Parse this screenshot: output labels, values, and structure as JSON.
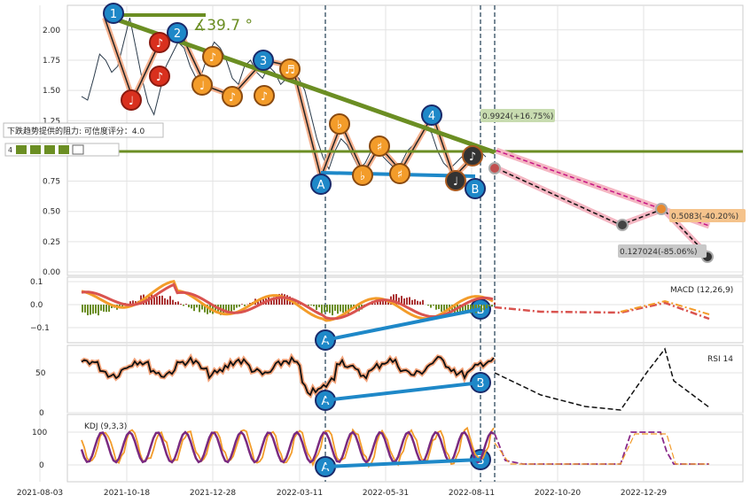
{
  "chart_data": [
    {
      "type": "line",
      "panel": "price",
      "ylim": [
        0.0,
        2.2
      ],
      "yticks": [
        "2.00",
        "1.75",
        "1.50",
        "1.25",
        "1.00",
        "0.75",
        "0.50",
        "0.25",
        "0.00"
      ],
      "angle_label": "∡39.7 °",
      "resistance_label": "下跌趋势提供的阻力: 可信度评分：4.0",
      "rating_label": "4",
      "series": [
        {
          "values": [
            1.45,
            1.42,
            1.6,
            1.8,
            1.75,
            1.65,
            1.7,
            1.9,
            2.1,
            1.85,
            1.6,
            1.4,
            1.3,
            1.5,
            1.7,
            1.8,
            1.9,
            1.85,
            1.7,
            1.6,
            1.65,
            1.8,
            1.9,
            1.85,
            1.75,
            1.6,
            1.55,
            1.7,
            1.75,
            1.65,
            1.6,
            1.7,
            1.65,
            1.55,
            1.6,
            1.65,
            1.6,
            1.5,
            1.3,
            1.1,
            0.95,
            0.85,
            1.0,
            1.1,
            1.05,
            0.95,
            0.85,
            0.9,
            1.0,
            1.05,
            0.95,
            0.9,
            0.85,
            0.9,
            1.0,
            1.05,
            1.1,
            1.2,
            1.15,
            1.0,
            0.9,
            0.85,
            0.9,
            0.95,
            0.9,
            0.95,
            1.0,
            0.95
          ]
        }
      ],
      "projections": [
        {
          "label": "0.9924(+16.75%)"
        },
        {
          "label": "0.5083(-40.20%)"
        },
        {
          "label": "0.127024(-85.06%)"
        }
      ],
      "markers": {
        "blue": [
          "1",
          "2",
          "3",
          "4",
          "A",
          "B"
        ],
        "red": [
          "♪",
          "♩",
          "♪"
        ],
        "orange": [
          "♩",
          "♪",
          "♪",
          "♪",
          "♬",
          "♭",
          "♭",
          "♯",
          "♯"
        ],
        "dark": [
          "♪",
          "♩"
        ]
      }
    },
    {
      "type": "line",
      "panel": "macd",
      "title": "MACD (12,26,9)",
      "ylim": [
        -0.15,
        0.12
      ],
      "yticks": [
        "0.1",
        "0.0",
        "−0.1"
      ],
      "divergence_points": [
        "A",
        "B"
      ]
    },
    {
      "type": "line",
      "panel": "rsi",
      "title": "RSI 14",
      "ylim": [
        0,
        90
      ],
      "yticks": [
        "50",
        "0"
      ],
      "divergence_points": [
        "A",
        "B"
      ]
    },
    {
      "type": "line",
      "panel": "kdj",
      "title": "KDJ (9,3,3)",
      "ylim": [
        -20,
        120
      ],
      "yticks": [
        "100",
        "0"
      ],
      "divergence_points": [
        "A",
        "B"
      ]
    }
  ],
  "xticks": [
    "2021-08-03",
    "2021-10-18",
    "2021-12-28",
    "2022-03-11",
    "2022-05-31",
    "2022-08-11",
    "2022-10-20",
    "2022-12-29"
  ]
}
